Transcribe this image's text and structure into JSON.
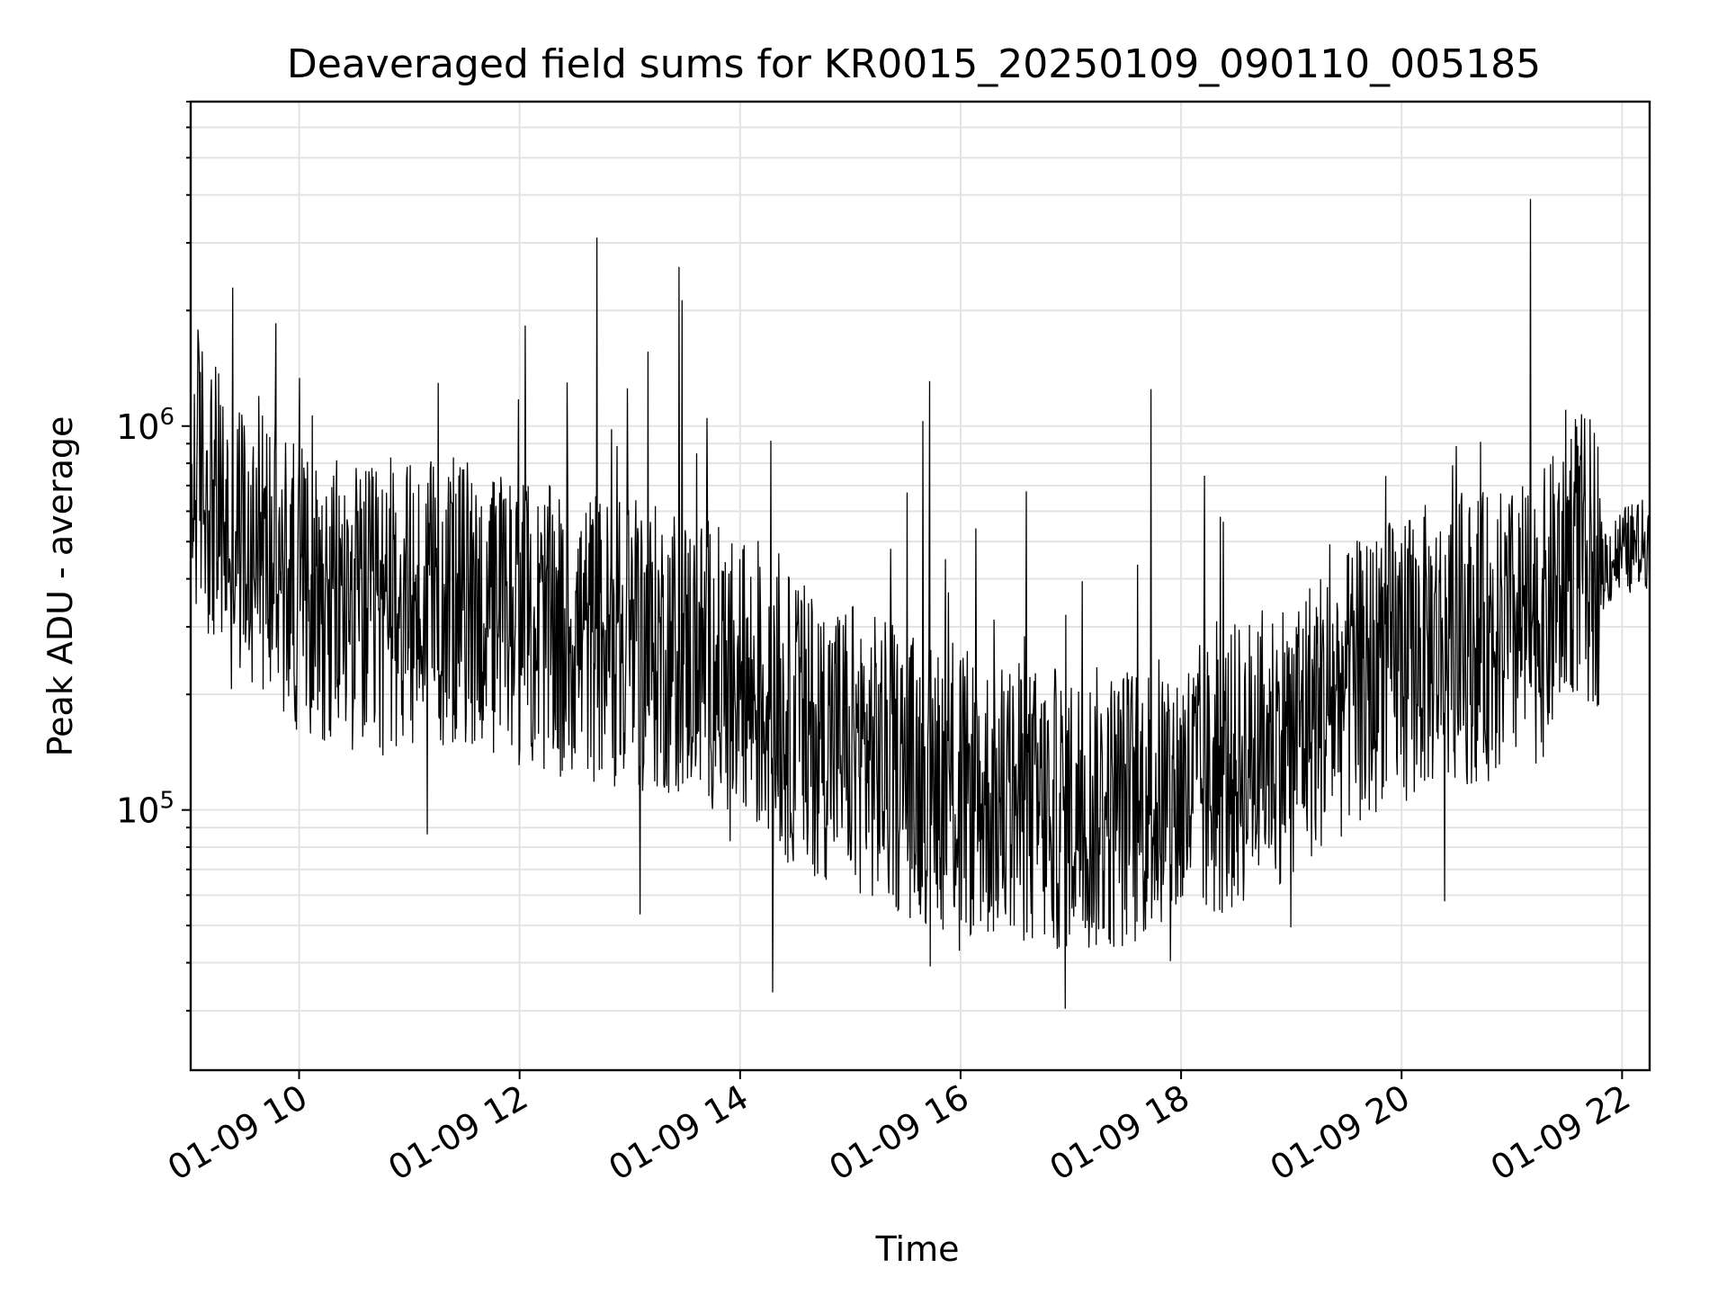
{
  "chart_data": {
    "type": "line",
    "title": "Deaveraged field sums for KR0015_20250109_090110_005185",
    "xlabel": "Time",
    "ylabel": "Peak ADU - average",
    "x_range": [
      "2025-01-09 09:01",
      "2025-01-09 22:15"
    ],
    "yscale": "log",
    "ylim": [
      21000,
      7000000
    ],
    "grid": true,
    "line_color": "#000000",
    "x_tick_labels": [
      "01-09 10",
      "01-09 12",
      "01-09 14",
      "01-09 16",
      "01-09 18",
      "01-09 20",
      "01-09 22"
    ],
    "y_tick_labels": [
      {
        "value": 100000,
        "base": "10",
        "exp": "5"
      },
      {
        "value": 1000000,
        "base": "10",
        "exp": "6"
      }
    ],
    "series": [
      {
        "x": [
          "2025-01-09 09:01",
          "2025-01-09 09:05",
          "2025-01-09 09:10",
          "2025-01-09 09:15",
          "2025-01-09 09:20",
          "2025-01-09 09:25",
          "2025-01-09 09:30",
          "2025-01-09 09:40",
          "2025-01-09 09:50",
          "2025-01-09 10:00",
          "2025-01-09 10:15",
          "2025-01-09 10:30",
          "2025-01-09 10:45",
          "2025-01-09 11:00",
          "2025-01-09 11:15",
          "2025-01-09 11:30",
          "2025-01-09 11:45",
          "2025-01-09 12:00",
          "2025-01-09 12:20",
          "2025-01-09 12:40",
          "2025-01-09 13:00",
          "2025-01-09 13:20",
          "2025-01-09 13:40",
          "2025-01-09 14:00",
          "2025-01-09 14:20",
          "2025-01-09 14:40",
          "2025-01-09 15:00",
          "2025-01-09 15:20",
          "2025-01-09 15:40",
          "2025-01-09 16:00",
          "2025-01-09 16:20",
          "2025-01-09 16:40",
          "2025-01-09 17:00",
          "2025-01-09 17:20",
          "2025-01-09 17:40",
          "2025-01-09 18:00",
          "2025-01-09 18:20",
          "2025-01-09 18:40",
          "2025-01-09 19:00",
          "2025-01-09 19:20",
          "2025-01-09 19:40",
          "2025-01-09 20:00",
          "2025-01-09 20:20",
          "2025-01-09 20:40",
          "2025-01-09 21:00",
          "2025-01-09 21:20",
          "2025-01-09 21:30",
          "2025-01-09 21:40",
          "2025-01-09 21:50",
          "2025-01-09 22:00",
          "2025-01-09 22:15"
        ],
        "y": [
          650000,
          800000,
          700000,
          600000,
          550000,
          520000,
          500000,
          480000,
          420000,
          380000,
          360000,
          340000,
          320000,
          330000,
          340000,
          350000,
          320000,
          300000,
          290000,
          280000,
          270000,
          260000,
          250000,
          210000,
          180000,
          160000,
          150000,
          130000,
          120000,
          110000,
          105000,
          100000,
          100000,
          100000,
          105000,
          110000,
          120000,
          140000,
          160000,
          190000,
          220000,
          250000,
          270000,
          280000,
          290000,
          330000,
          480000,
          450000,
          430000,
          470000,
          500000
        ]
      }
    ]
  }
}
